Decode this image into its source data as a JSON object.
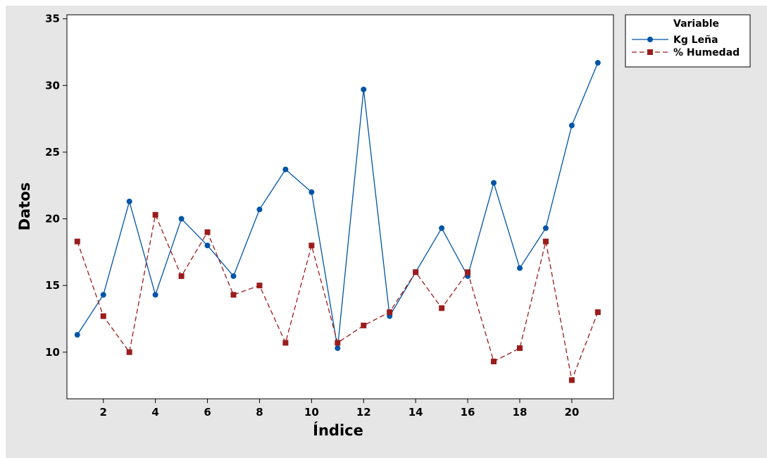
{
  "chart_data": {
    "type": "line",
    "xlabel": "Índice",
    "ylabel": "Datos",
    "xlim": [
      0.6,
      21.6
    ],
    "ylim": [
      6.5,
      35.3
    ],
    "xticks": [
      2,
      4,
      6,
      8,
      10,
      12,
      14,
      16,
      18,
      20
    ],
    "yticks": [
      10,
      15,
      20,
      25,
      30,
      35
    ],
    "grid": false,
    "legend": {
      "title": "Variable",
      "placement": "top-right, outside"
    },
    "x": [
      1,
      2,
      3,
      4,
      5,
      6,
      7,
      8,
      9,
      10,
      11,
      12,
      13,
      14,
      15,
      16,
      17,
      18,
      19,
      20,
      21
    ],
    "series": [
      {
        "name": "Kg Leña",
        "color": "#0054a6",
        "line_style": "solid",
        "marker": "circle",
        "values": [
          11.3,
          14.3,
          21.3,
          14.3,
          20.0,
          18.0,
          15.7,
          20.7,
          23.7,
          22.0,
          10.3,
          29.7,
          12.7,
          16.0,
          19.3,
          15.7,
          22.7,
          16.3,
          19.3,
          27.0,
          31.7
        ]
      },
      {
        "name": "% Humedad",
        "color": "#9b1c1c",
        "line_style": "dashed",
        "marker": "square",
        "values": [
          18.3,
          12.7,
          10.0,
          20.3,
          15.7,
          19.0,
          14.3,
          15.0,
          10.7,
          18.0,
          10.7,
          12.0,
          13.0,
          16.0,
          13.3,
          16.0,
          9.3,
          10.3,
          18.3,
          7.9,
          13.0
        ]
      }
    ]
  }
}
